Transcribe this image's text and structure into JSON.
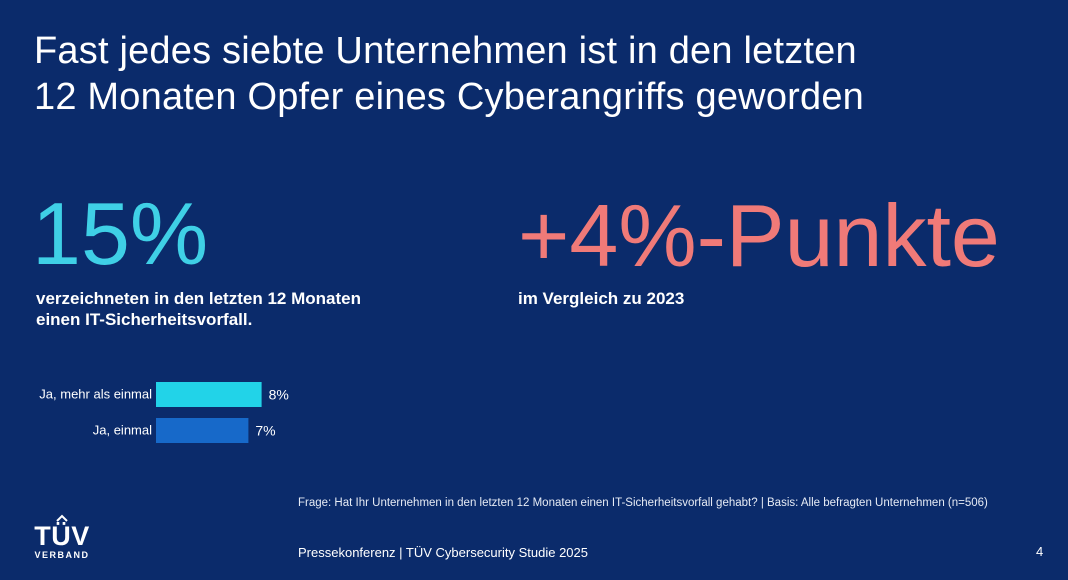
{
  "title": {
    "line1": "Fast jedes siebte Unternehmen ist in den letzten",
    "line2": "12 Monaten Opfer eines Cyberangriffs geworden"
  },
  "kpi_left": {
    "value": "15%",
    "description_line1": "verzeichneten in den  letzten 12 Monaten",
    "description_line2": "einen IT-Sicherheitsvorfall."
  },
  "kpi_right": {
    "value": "+4%-Punkte",
    "description": "im Vergleich zu 2023"
  },
  "chart_data": {
    "type": "bar",
    "orientation": "horizontal",
    "categories": [
      "Ja, mehr als einmal",
      "Ja, einmal"
    ],
    "values": [
      8,
      7
    ],
    "value_labels": [
      "8%",
      "7%"
    ],
    "colors": [
      "#22d3e8",
      "#1769c9"
    ],
    "title": "",
    "xlabel": "",
    "ylabel": "",
    "grid": false
  },
  "footnote": "Frage: Hat Ihr Unternehmen in den letzten 12 Monaten einen IT-Sicherheitsvorfall gehabt? | Basis: Alle befragten Unternehmen (n=506)",
  "footer": {
    "text": "Pressekonferenz | TÜV Cybersecurity Studie 2025",
    "page_number": "4"
  },
  "logo": {
    "main": "TÜV",
    "sub": "VERBAND"
  },
  "colors": {
    "background": "#0b2b6b",
    "accent_cyan": "#3fd0e6",
    "accent_coral": "#f07a78"
  }
}
